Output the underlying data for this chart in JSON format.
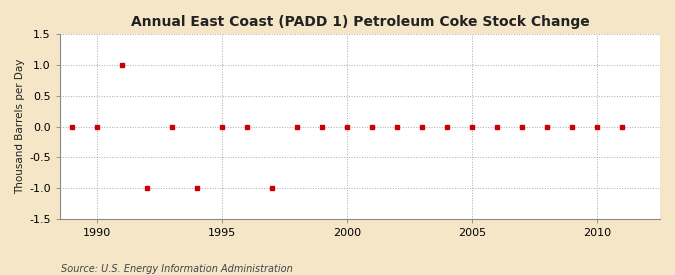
{
  "title": "Annual East Coast (PADD 1) Petroleum Coke Stock Change",
  "ylabel": "Thousand Barrels per Day",
  "source": "Source: U.S. Energy Information Administration",
  "figure_background_color": "#f5e6c8",
  "plot_background_color": "#ffffff",
  "marker_color": "#cc0000",
  "marker": "s",
  "markersize": 3.5,
  "grid_color": "#aaaaaa",
  "grid_linestyle": ":",
  "xlim": [
    1988.5,
    2012.5
  ],
  "ylim": [
    -1.5,
    1.5
  ],
  "yticks": [
    -1.5,
    -1.0,
    -0.5,
    0.0,
    0.5,
    1.0,
    1.5
  ],
  "xticks": [
    1990,
    1995,
    2000,
    2005,
    2010
  ],
  "title_fontsize": 10,
  "ylabel_fontsize": 7.5,
  "tick_fontsize": 8,
  "source_fontsize": 7,
  "years": [
    1989,
    1990,
    1991,
    1992,
    1993,
    1994,
    1995,
    1996,
    1997,
    1998,
    1999,
    2000,
    2001,
    2002,
    2003,
    2004,
    2005,
    2006,
    2007,
    2008,
    2009,
    2010,
    2011
  ],
  "values": [
    0.0,
    0.0,
    1.0,
    -1.0,
    0.0,
    -1.0,
    0.0,
    0.0,
    -1.0,
    0.0,
    0.0,
    0.0,
    0.0,
    0.0,
    0.0,
    0.0,
    0.0,
    0.0,
    0.0,
    0.0,
    0.0,
    0.0,
    0.0
  ]
}
